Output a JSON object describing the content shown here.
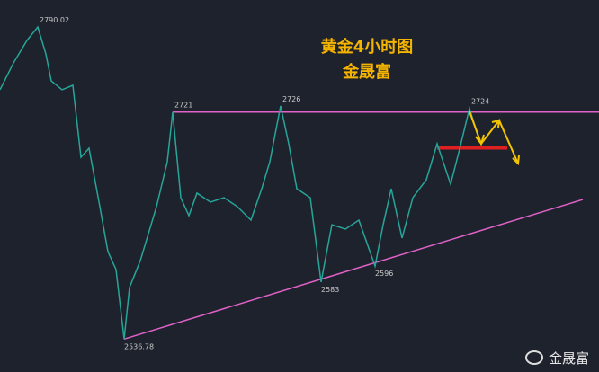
{
  "chart_data": {
    "type": "line",
    "title": "黄金4小时图",
    "subtitle": "金晟富",
    "watermark": "金晟富",
    "x": [
      0,
      5,
      10,
      14,
      17,
      19,
      23,
      27,
      30,
      33,
      37,
      40,
      43,
      46,
      48,
      52,
      55,
      58,
      62,
      64,
      67,
      70,
      73,
      78,
      83,
      88,
      93,
      97,
      100,
      104,
      107,
      110,
      115,
      119,
      123,
      128,
      133,
      139,
      142,
      145,
      149,
      153,
      158,
      162,
      167,
      170,
      174,
      177
    ],
    "series": [
      {
        "color": "#26a69a",
        "values": [
          2739.1,
          2760.9,
          2779.2,
          2790.02,
          2768.2,
          2746.3,
          2739.1,
          2742.7,
          2684.3,
          2691.6,
          2644.2,
          2607.7,
          2593.2,
          2536.78,
          2578.6,
          2600.4,
          2622.3,
          2644.2,
          2680.7,
          2721,
          2651.5,
          2636.9,
          2655.2,
          2647.9,
          2651.5,
          2644.2,
          2633.3,
          2658.8,
          2680.7,
          2726,
          2695.3,
          2658.8,
          2651.5,
          2583,
          2629.6,
          2626,
          2633.3,
          2596,
          2629.6,
          2658.8,
          2618.7,
          2651.5,
          2666.1,
          2695.3,
          2662.5,
          2688,
          2724,
          2702.6
        ],
        "value_labels": [
          null,
          null,
          null,
          "2790.02",
          null,
          null,
          null,
          null,
          null,
          null,
          null,
          null,
          null,
          "2536.78",
          null,
          null,
          null,
          null,
          null,
          "2721",
          null,
          null,
          null,
          null,
          null,
          null,
          null,
          null,
          null,
          "2726",
          null,
          null,
          null,
          "2583",
          null,
          null,
          null,
          "2596",
          null,
          null,
          null,
          null,
          null,
          null,
          null,
          null,
          "2724",
          null
        ]
      }
    ],
    "lines": [
      {
        "color": "#e062c8",
        "from": [
          64,
          2721
        ],
        "to": [
          222,
          2721
        ]
      },
      {
        "color": "#e062c8",
        "from": [
          46,
          2536.78
        ],
        "to": [
          216,
          2650
        ]
      },
      {
        "color": "#e02020",
        "from": [
          162,
          2692
        ],
        "to": [
          188,
          2692
        ]
      }
    ],
    "xlim": [
      0,
      222
    ],
    "ylim": [
      2510,
      2812
    ]
  }
}
